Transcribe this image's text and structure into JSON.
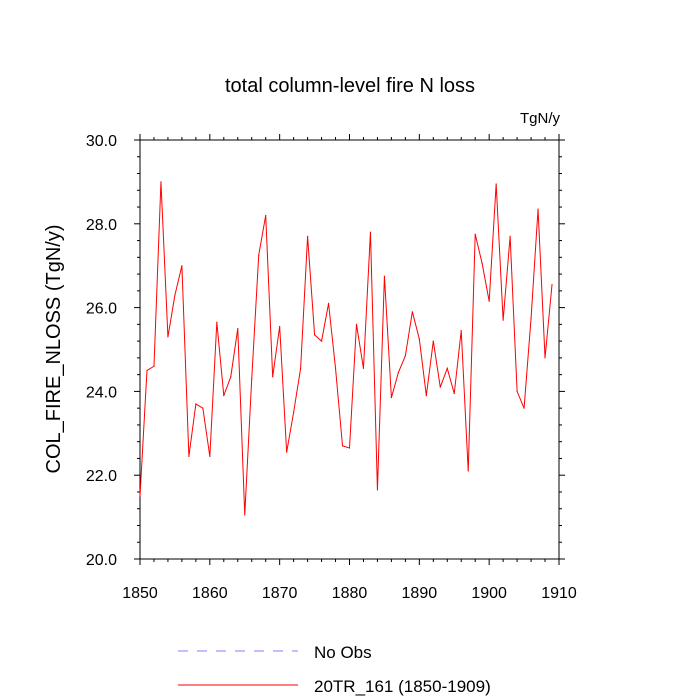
{
  "chart_data": {
    "type": "line",
    "title": "total column-level fire N loss",
    "units": "TgN/y",
    "ylabel": "COL_FIRE_NLOSS  (TgN/y)",
    "xlabel": "",
    "xlim": [
      1850,
      1910
    ],
    "ylim": [
      20.0,
      30.0
    ],
    "x_ticks": [
      1850,
      1860,
      1870,
      1880,
      1890,
      1900,
      1910
    ],
    "y_ticks": [
      20.0,
      22.0,
      24.0,
      26.0,
      28.0,
      30.0
    ],
    "y_tick_labels": [
      "20.0",
      "22.0",
      "24.0",
      "26.0",
      "28.0",
      "30.0"
    ],
    "grid": false,
    "legend_position": "bottom",
    "legend": [
      {
        "label": "No Obs",
        "style": "dashed",
        "color": "#8080ff"
      },
      {
        "label": "20TR_161 (1850-1909)",
        "style": "solid",
        "color": "#ff0000"
      }
    ],
    "series": [
      {
        "name": "20TR_161 (1850-1909)",
        "color": "#ff0000",
        "x": [
          1850,
          1851,
          1852,
          1853,
          1854,
          1855,
          1856,
          1857,
          1858,
          1859,
          1860,
          1861,
          1862,
          1863,
          1864,
          1865,
          1866,
          1867,
          1868,
          1869,
          1870,
          1871,
          1872,
          1873,
          1874,
          1875,
          1876,
          1877,
          1878,
          1879,
          1880,
          1881,
          1882,
          1883,
          1884,
          1885,
          1886,
          1887,
          1888,
          1889,
          1890,
          1891,
          1892,
          1893,
          1894,
          1895,
          1896,
          1897,
          1898,
          1899,
          1900,
          1901,
          1902,
          1903,
          1904,
          1905,
          1906,
          1907,
          1908,
          1909
        ],
        "values": [
          21.5,
          24.5,
          24.6,
          29.0,
          25.3,
          26.3,
          27.0,
          22.45,
          23.7,
          23.6,
          22.45,
          25.65,
          23.9,
          24.35,
          25.5,
          21.05,
          24.3,
          27.25,
          28.2,
          24.35,
          25.55,
          22.55,
          23.5,
          24.55,
          27.7,
          25.35,
          25.2,
          26.1,
          24.55,
          22.7,
          22.65,
          25.6,
          24.55,
          27.8,
          21.65,
          26.75,
          23.85,
          24.45,
          24.85,
          25.9,
          25.25,
          23.9,
          25.2,
          24.1,
          24.55,
          23.95,
          25.45,
          22.1,
          27.75,
          27.05,
          26.15,
          28.95,
          25.7,
          27.7,
          24.0,
          23.6,
          25.75,
          28.35,
          24.8,
          26.55
        ]
      }
    ]
  }
}
